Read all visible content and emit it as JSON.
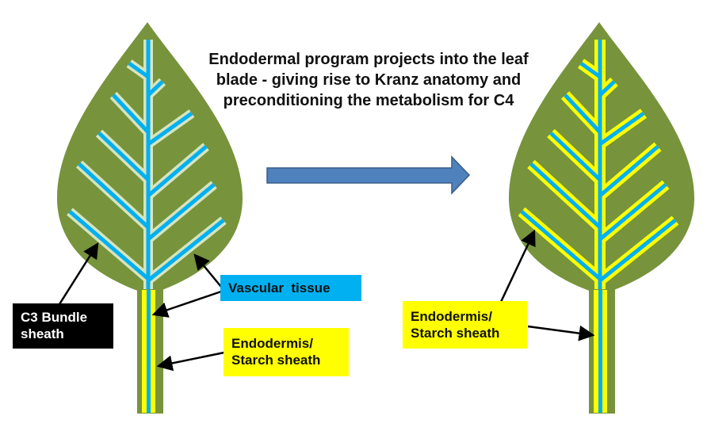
{
  "title": "Endodermal program projects into the leaf blade - giving rise to Kranz anatomy and preconditioning the metabolism for C4",
  "labels": {
    "vascular": "Vascular  tissue",
    "c3_bundle_sheath": "C3 Bundle sheath",
    "endodermis_left": "Endodermis/ Starch sheath",
    "endodermis_right": "Endodermis/ Starch sheath"
  },
  "colors": {
    "leaf": "#77933c",
    "vascular": "#00b0f0",
    "bundle_sheath_c3": "#d7e4bd",
    "endodermis": "#ffff00",
    "arrow": "#4f81bd",
    "label_dark": "#000000"
  }
}
